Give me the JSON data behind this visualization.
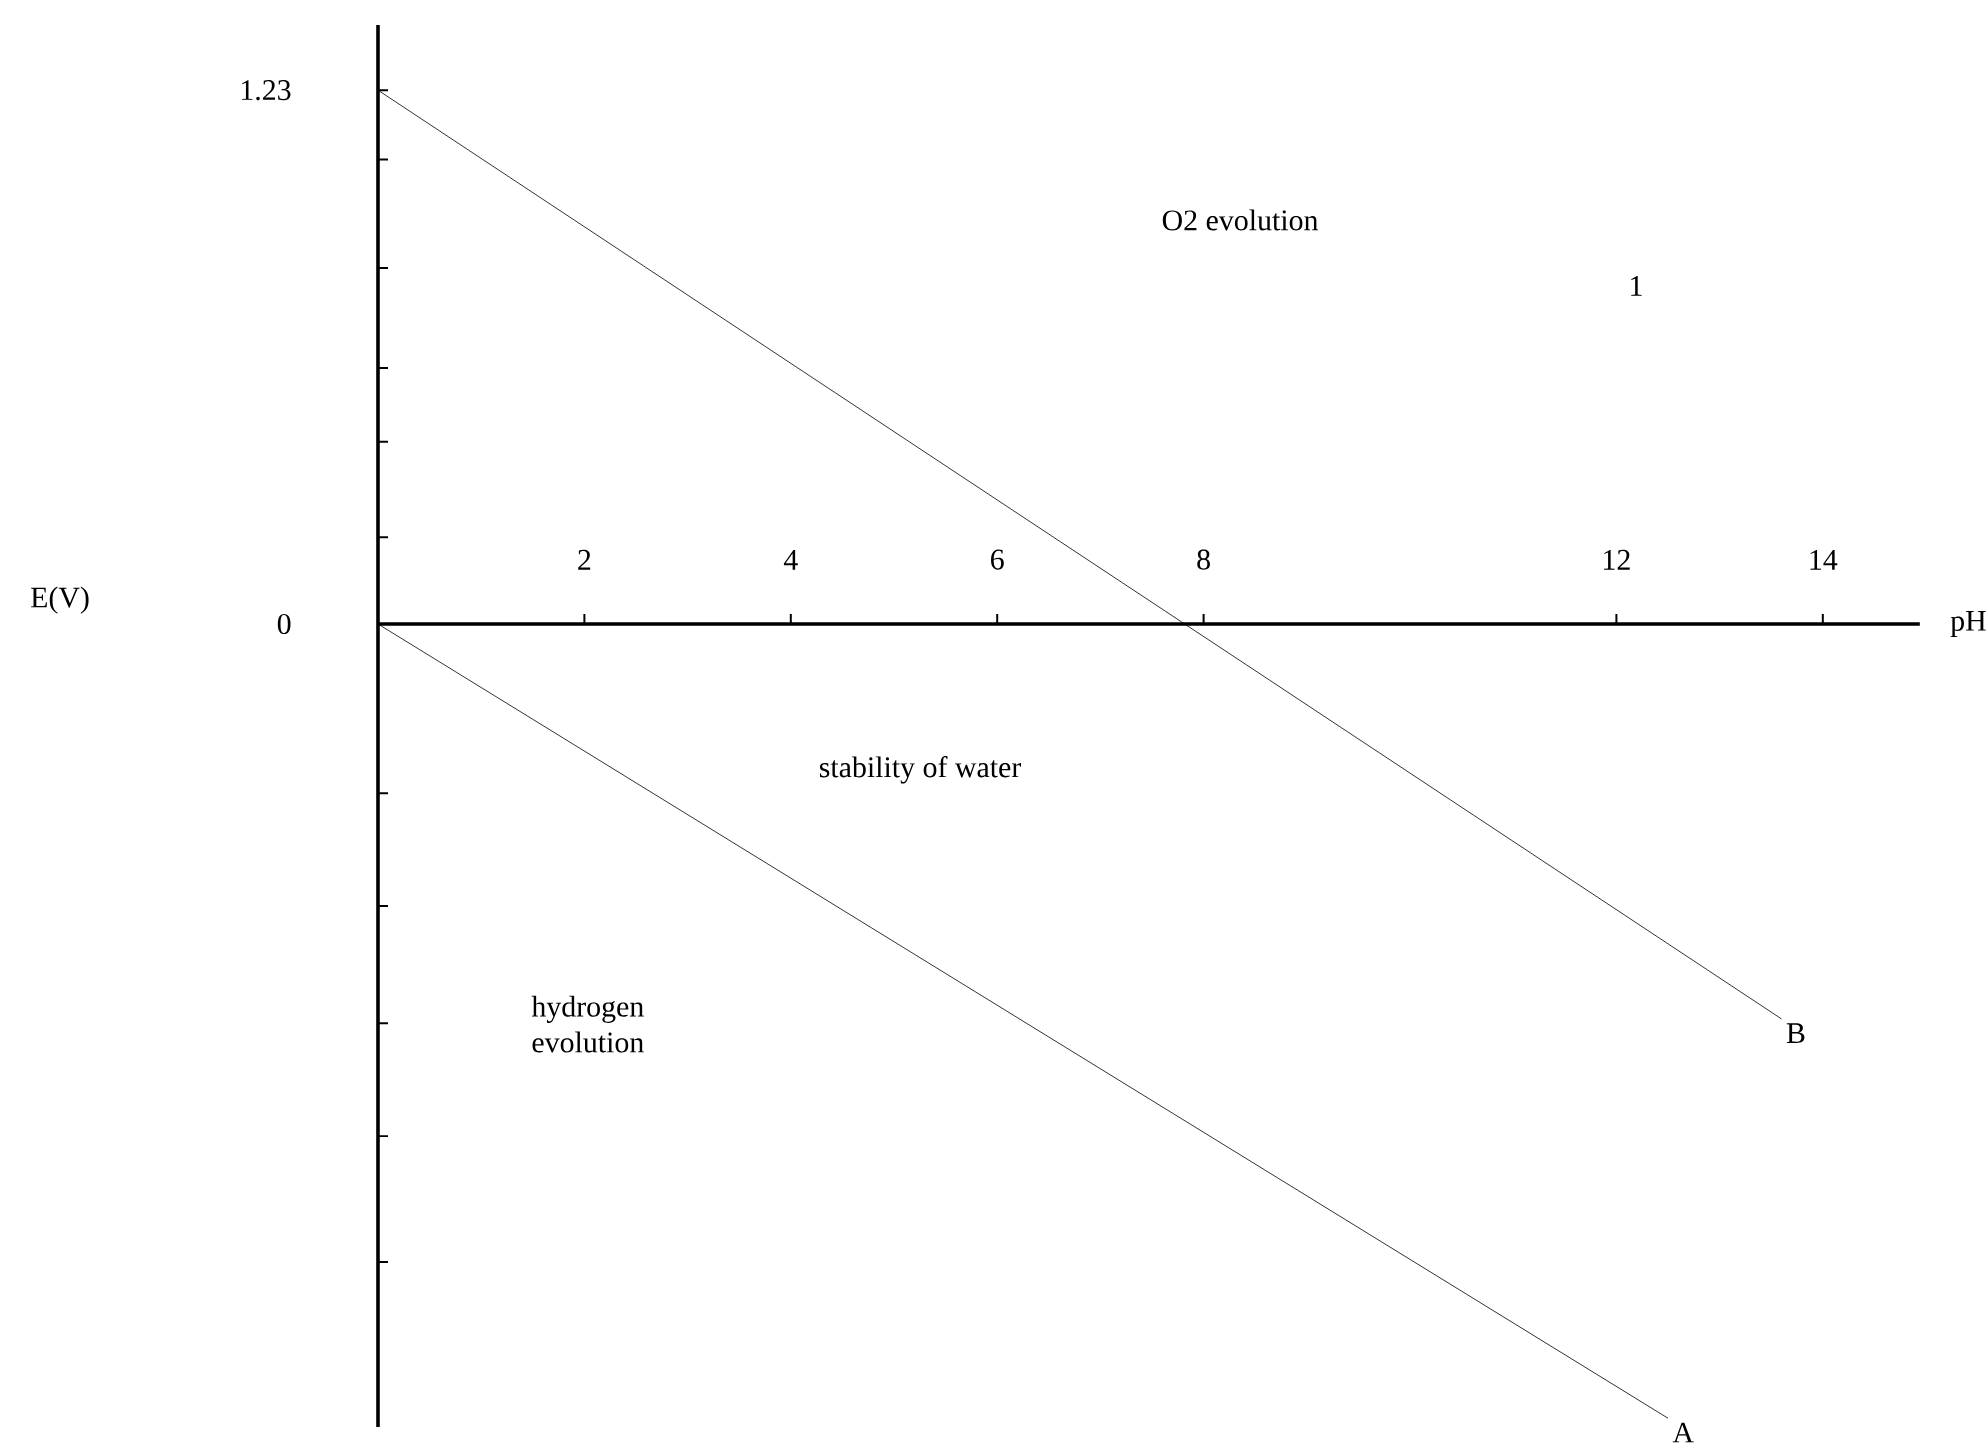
{
  "chart_data": {
    "type": "line",
    "xlabel": "pH",
    "xlim": [
      0,
      14.94
    ],
    "ylim": [
      -1.85,
      1.38
    ],
    "xticks": [
      2,
      4,
      6,
      8,
      12,
      14
    ],
    "yticks": [
      {
        "value": 1.23,
        "label": "1.23"
      },
      {
        "value": 1.07,
        "label": null
      },
      {
        "value": 0.82,
        "label": null
      },
      {
        "value": 0.59,
        "label": null
      },
      {
        "value": 0.42,
        "label": null
      },
      {
        "value": 0.2,
        "label": null
      },
      0,
      {
        "value": -0.39,
        "label": null
      },
      {
        "value": -0.65,
        "label": null
      },
      {
        "value": -0.92,
        "label": null
      },
      {
        "value": -1.18,
        "label": null
      },
      {
        "value": -1.47,
        "label": null
      }
    ],
    "series": [
      {
        "name": "B",
        "color": "#000000",
        "x": [
          0,
          13.6
        ],
        "values": [
          1.23,
          -0.91
        ]
      },
      {
        "name": "A",
        "color": "#000000",
        "x": [
          0,
          12.5
        ],
        "values": [
          0,
          -1.83
        ]
      }
    ],
    "marker": "none",
    "line_style": "solid",
    "grid": false,
    "annotations": [
      "O2 evolution",
      "1",
      "stability of water",
      "hydrogen evolution",
      "E(V)"
    ]
  }
}
